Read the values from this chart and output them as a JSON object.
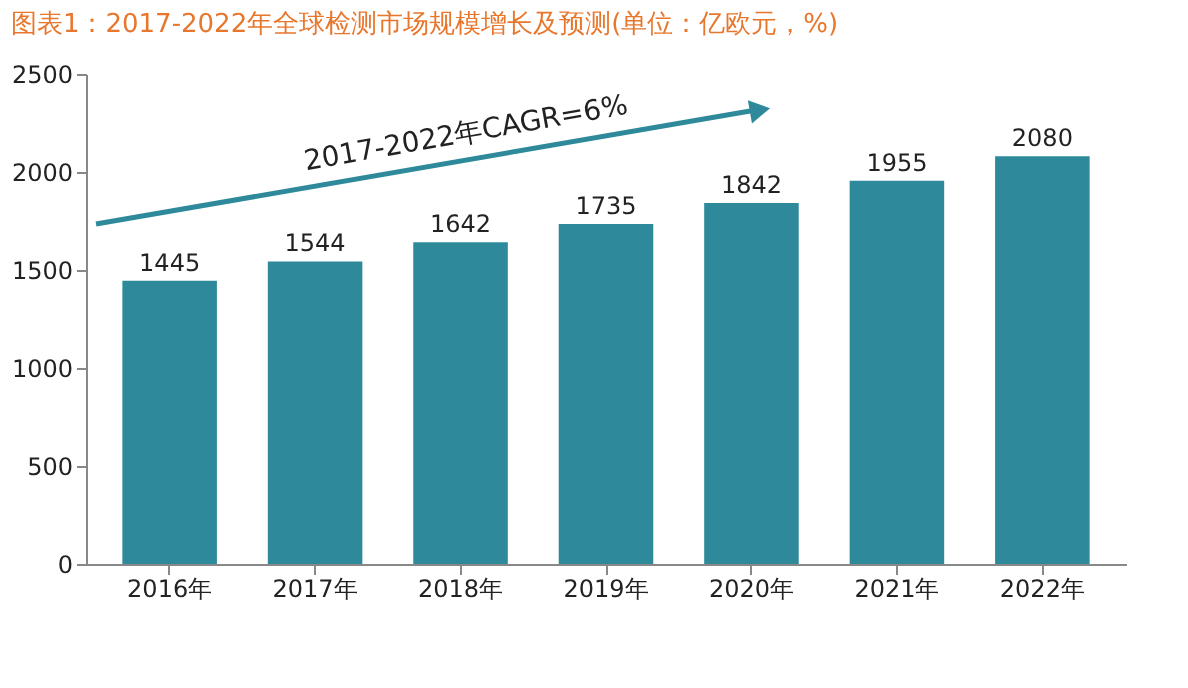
{
  "chart_data": {
    "type": "bar",
    "title": "图表1：2017-2022年全球检测市场规模增长及预测(单位：亿欧元，%)",
    "categories": [
      "2016年",
      "2017年",
      "2018年",
      "2019年",
      "2020年",
      "2021年",
      "2022年"
    ],
    "values": [
      1445,
      1544,
      1642,
      1735,
      1842,
      1955,
      2080
    ],
    "color": "#2e8a9a",
    "ylim": [
      0,
      2500
    ],
    "yticks": [
      0,
      500,
      1000,
      1500,
      2000,
      2500
    ],
    "grid": false,
    "data_labels": true,
    "annotations": [
      "2017-2022年CAGR=6%"
    ]
  }
}
